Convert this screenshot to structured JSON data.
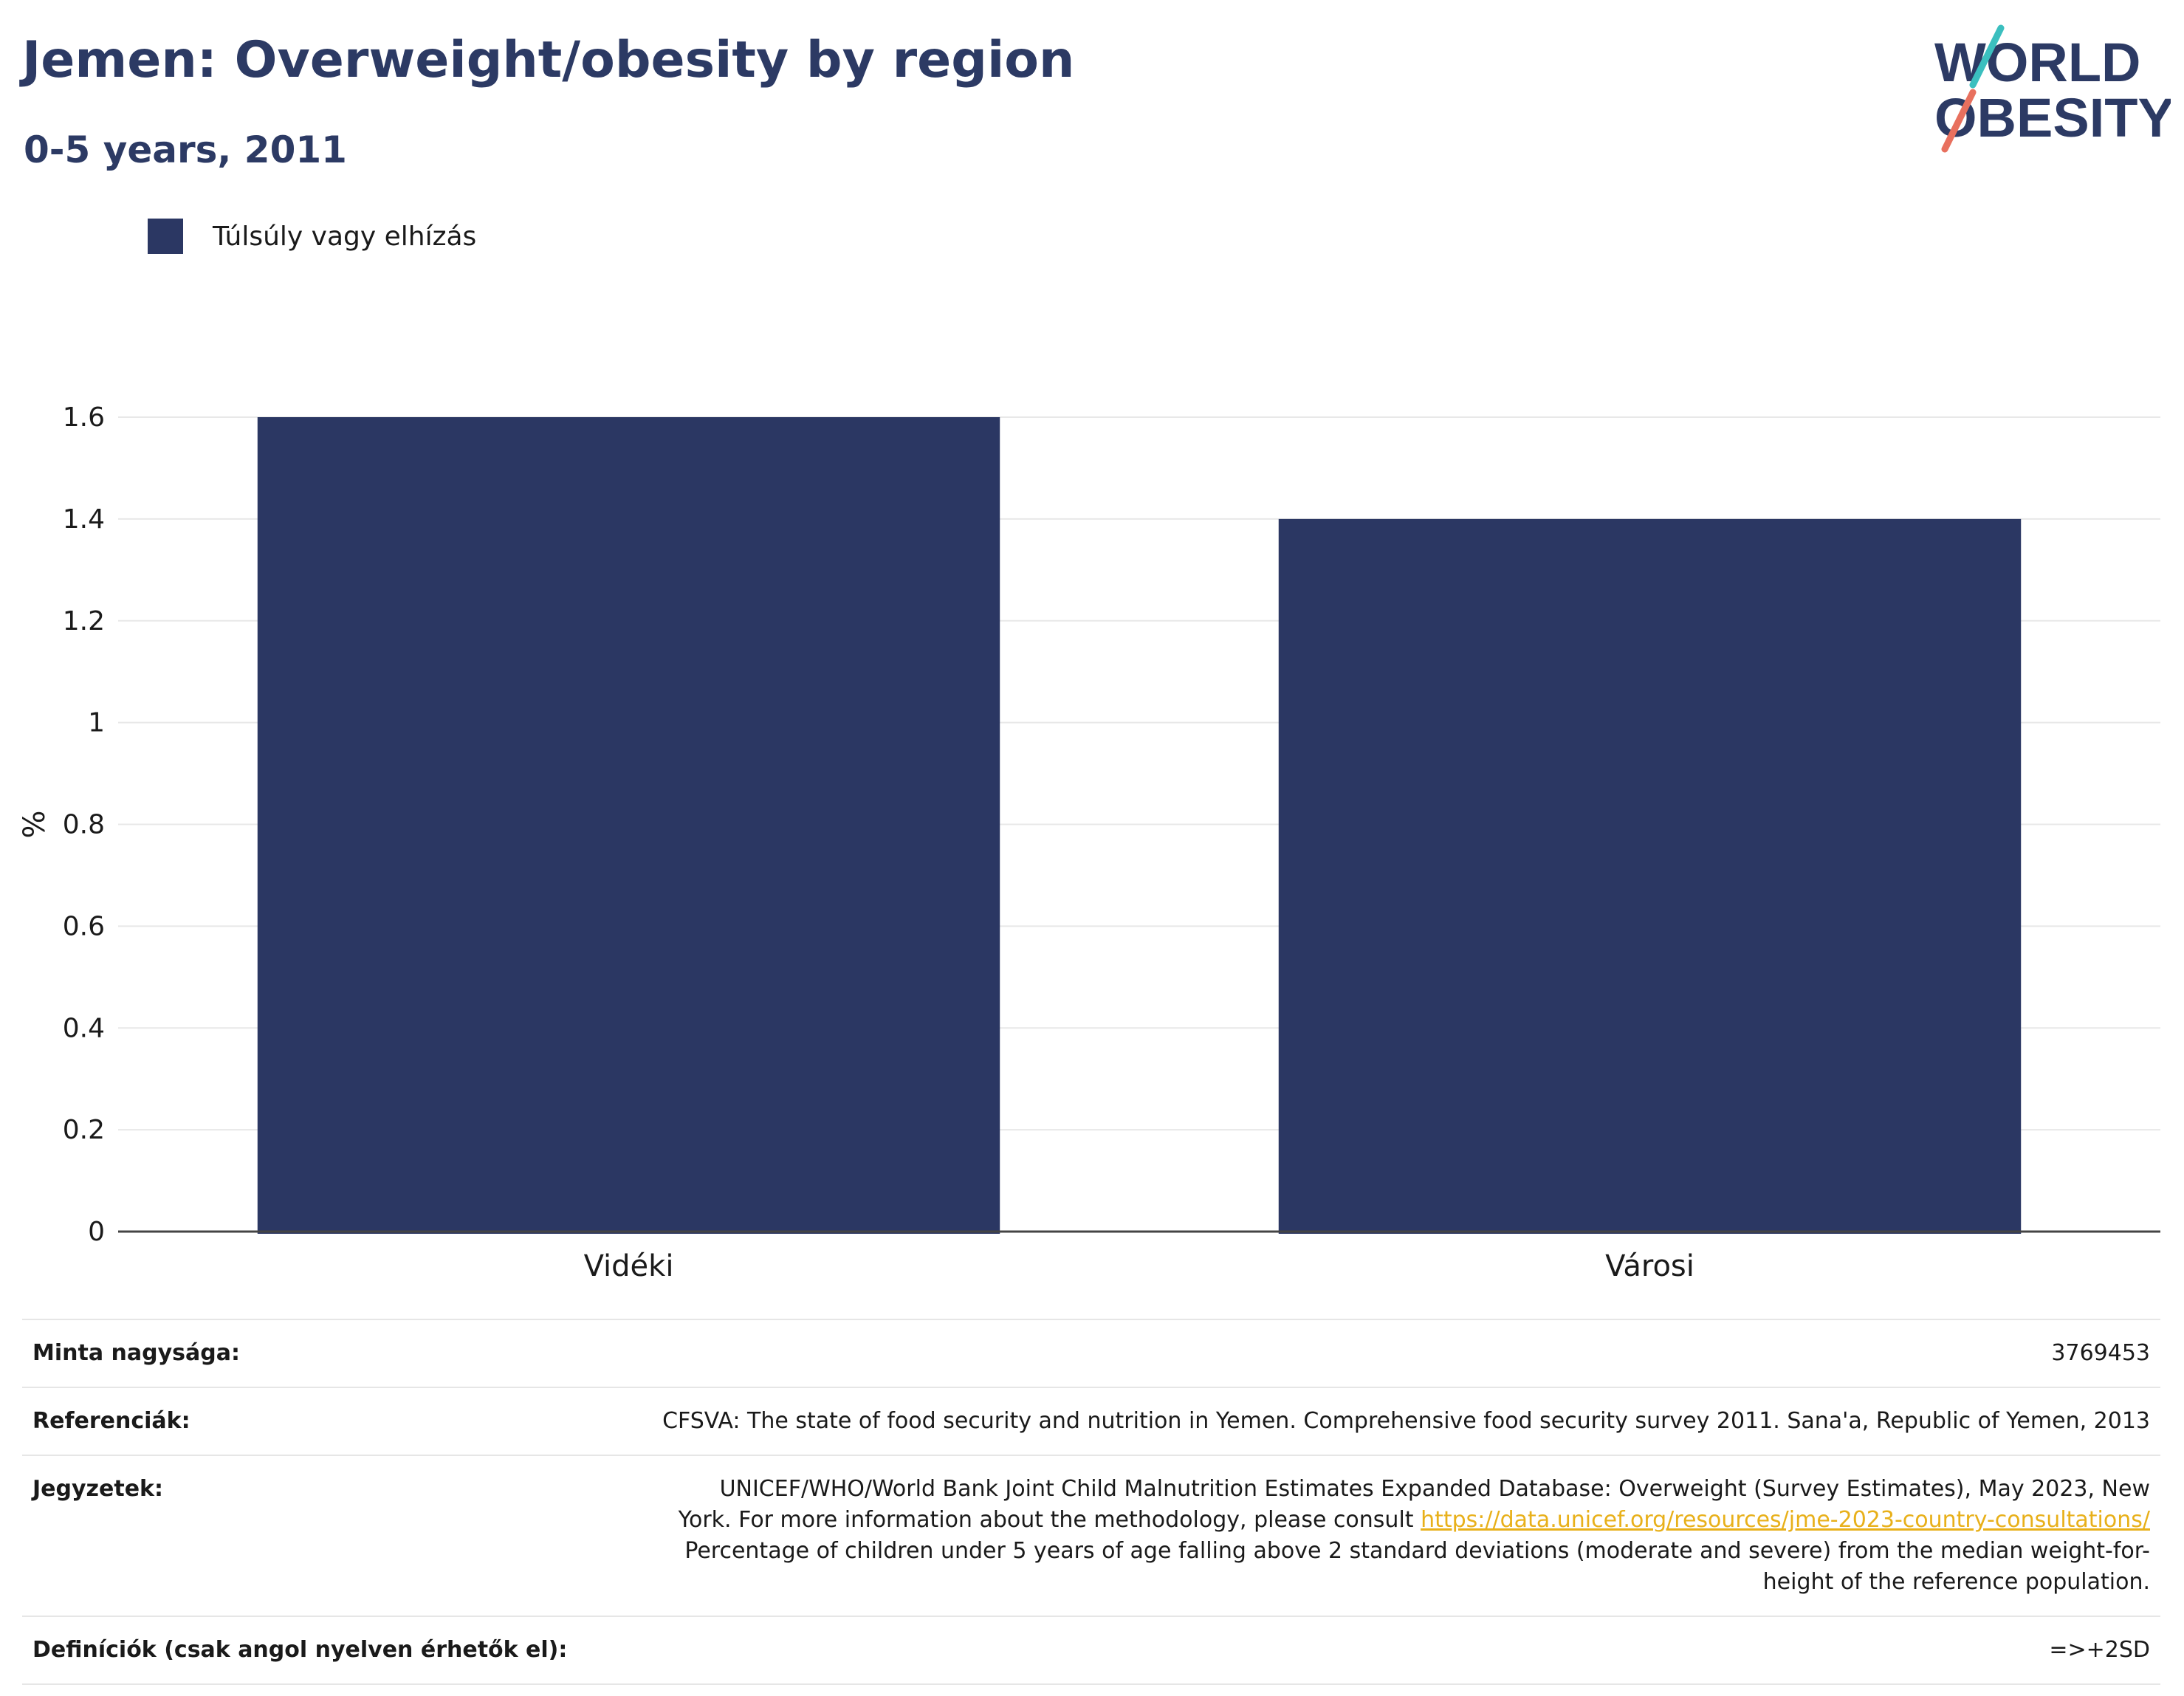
{
  "header": {
    "title": "Jemen: Overweight/obesity by region",
    "subtitle": "0-5 years, 2011"
  },
  "logo": {
    "line1": "WORLD",
    "line2": "OBESITY",
    "text_color": "#2c3a64",
    "teal": "#3bbfbf",
    "coral": "#e8705e"
  },
  "colors": {
    "bar": "#2b3763",
    "grid": "#e8e8e8",
    "axis": "#444444"
  },
  "chart_data": {
    "type": "bar",
    "categories": [
      "Vidéki",
      "Városi"
    ],
    "series": [
      {
        "name": "Túlsúly vagy elhízás",
        "values": [
          1.6,
          1.4
        ]
      }
    ],
    "ylabel": "%",
    "ylim": [
      0,
      1.6
    ],
    "yticks": [
      "0",
      "0.2",
      "0.4",
      "0.6",
      "0.8",
      "1",
      "1.2",
      "1.4",
      "1.6"
    ],
    "grid": true,
    "legend": "top-left"
  },
  "footer": {
    "sample_label": "Minta nagysága:",
    "sample_value": "3769453",
    "refs_label": "Referenciák:",
    "refs_value": "CFSVA: The state of food security and nutrition in Yemen. Comprehensive food security survey 2011. Sana'a, Republic of Yemen, 2013",
    "notes_label": "Jegyzetek:",
    "notes_line1": "UNICEF/WHO/World Bank Joint Child Malnutrition Estimates Expanded Database: Overweight (Survey Estimates), May 2023, New",
    "notes_line2_prefix": "York. For more information about the methodology, please consult ",
    "notes_link": "https://data.unicef.org/resources/jme-2023-country-consultations/",
    "notes_line3": "Percentage of children under 5 years of age falling above 2 standard deviations (moderate and severe) from the median weight-for-",
    "notes_line4": "height of the reference population.",
    "defs_label": "Definíciók (csak angol nyelven érhetők el):",
    "defs_value": "=>+2SD"
  }
}
